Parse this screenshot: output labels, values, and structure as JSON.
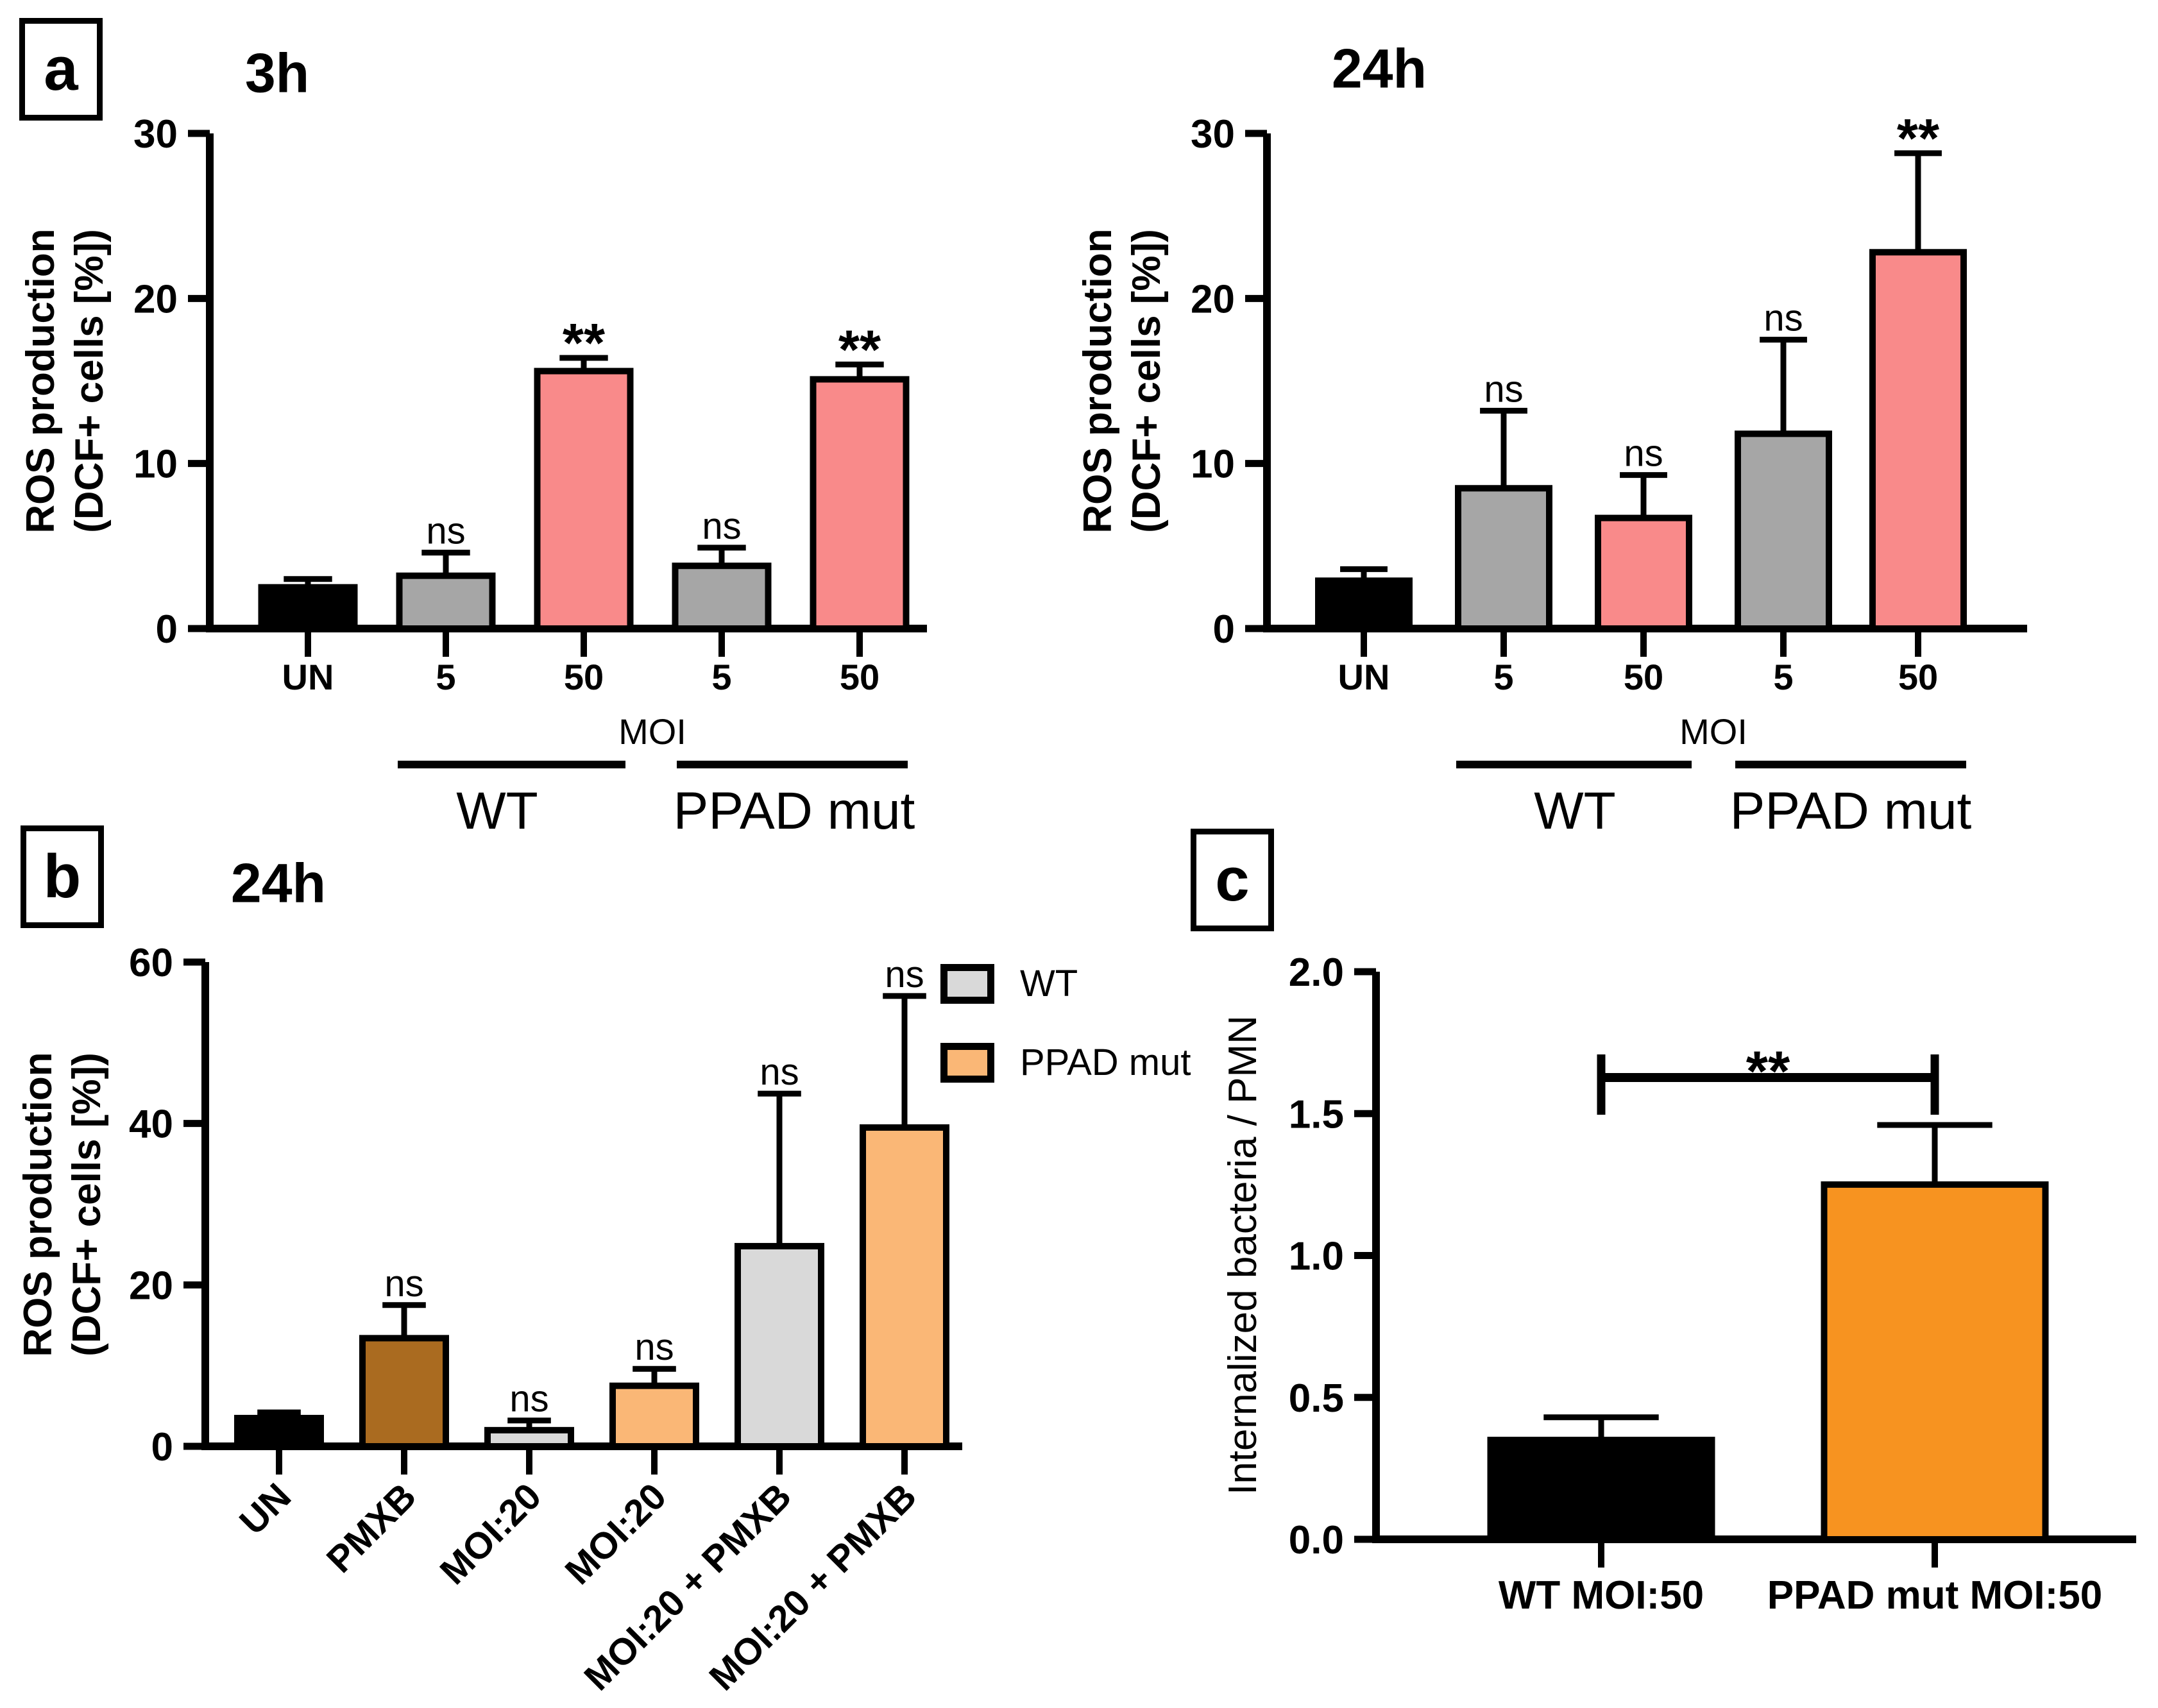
{
  "figure": {
    "panels": [
      {
        "id": "a",
        "label": "a"
      },
      {
        "id": "b",
        "label": "b"
      },
      {
        "id": "c",
        "label": "c"
      }
    ]
  },
  "colors": {
    "black": "#000000",
    "gray": "#A6A6A6",
    "pink": "#F98A8A",
    "brown": "#AA6B20",
    "light_gray": "#D9D9D9",
    "light_orange": "#FAB776",
    "orange": "#F79320"
  },
  "chart_data": [
    {
      "id": "panel-a-3h",
      "type": "bar",
      "title": "3h",
      "ylabel_lines": [
        "ROS production",
        "(DCF+ cells [%])"
      ],
      "ylim": [
        0,
        30
      ],
      "yticks": [
        0,
        10,
        20,
        30
      ],
      "ytick_labels": [
        "0",
        "10",
        "20",
        "30"
      ],
      "categories": [
        "UN",
        "5",
        "50",
        "5",
        "50"
      ],
      "values": [
        2.5,
        3.2,
        15.6,
        3.8,
        15.1
      ],
      "errors_upper": [
        3.0,
        4.6,
        16.4,
        4.9,
        16.0
      ],
      "bar_colors": [
        "black",
        "gray",
        "pink",
        "gray",
        "pink"
      ],
      "annotations": [
        "",
        "ns",
        "**",
        "ns",
        "**"
      ],
      "xlabel": "MOI",
      "groups": [
        {
          "label": "WT"
        },
        {
          "label": "PPAD mut"
        }
      ],
      "grid": false,
      "legend_position": "none"
    },
    {
      "id": "panel-a-24h",
      "type": "bar",
      "title": "24h",
      "ylabel_lines": [
        "ROS production",
        "(DCF+ cells [%])"
      ],
      "ylim": [
        0,
        30
      ],
      "yticks": [
        0,
        10,
        20,
        30
      ],
      "ytick_labels": [
        "0",
        "10",
        "20",
        "30"
      ],
      "categories": [
        "UN",
        "5",
        "50",
        "5",
        "50"
      ],
      "values": [
        2.9,
        8.5,
        6.7,
        11.8,
        22.8
      ],
      "errors_upper": [
        3.6,
        13.2,
        9.3,
        17.5,
        28.8
      ],
      "bar_colors": [
        "black",
        "gray",
        "pink",
        "gray",
        "pink"
      ],
      "annotations": [
        "",
        "ns",
        "ns",
        "ns",
        "**"
      ],
      "xlabel": "MOI",
      "groups": [
        {
          "label": "WT"
        },
        {
          "label": "PPAD mut"
        }
      ],
      "grid": false,
      "legend_position": "none"
    },
    {
      "id": "panel-b-24h",
      "type": "bar",
      "title": "24h",
      "ylabel_lines": [
        "ROS production",
        "(DCF+ cells [%])"
      ],
      "ylim": [
        0,
        60
      ],
      "yticks": [
        0,
        20,
        40,
        60
      ],
      "ytick_labels": [
        "0",
        "20",
        "40",
        "60"
      ],
      "categories": [
        "UN",
        "PMXB",
        "MOI:20",
        "MOI:20",
        "MOI:20 + PMXB",
        "MOI:20 + PMXB"
      ],
      "values": [
        3.5,
        13.4,
        2.0,
        7.5,
        24.8,
        39.5
      ],
      "errors_upper": [
        4.2,
        17.5,
        3.2,
        9.6,
        43.7,
        55.8
      ],
      "bar_colors": [
        "black",
        "brown",
        "light_gray",
        "light_orange",
        "light_gray",
        "light_orange"
      ],
      "annotations": [
        "",
        "ns",
        "ns",
        "ns",
        "ns",
        "ns"
      ],
      "legend": [
        {
          "label": "WT",
          "color": "light_gray"
        },
        {
          "label": "PPAD mut",
          "color": "light_orange"
        }
      ],
      "grid": false,
      "legend_position": "top-right"
    },
    {
      "id": "panel-c",
      "type": "bar",
      "title": "",
      "ylabel": "Internalized bacteria / PMN",
      "ylim": [
        0,
        2
      ],
      "yticks": [
        0,
        0.5,
        1,
        1.5,
        2
      ],
      "ytick_labels": [
        "0.0",
        "0.5",
        "1.0",
        "1.5",
        "2.0"
      ],
      "categories": [
        "WT MOI:50",
        "PPAD mut MOI:50"
      ],
      "values": [
        0.35,
        1.25
      ],
      "errors_upper": [
        0.43,
        1.46
      ],
      "bar_colors": [
        "black",
        "orange"
      ],
      "annotations": [
        "",
        ""
      ],
      "comparison": {
        "from": 0,
        "to": 1,
        "label": "**"
      },
      "grid": false,
      "legend_position": "none"
    }
  ]
}
